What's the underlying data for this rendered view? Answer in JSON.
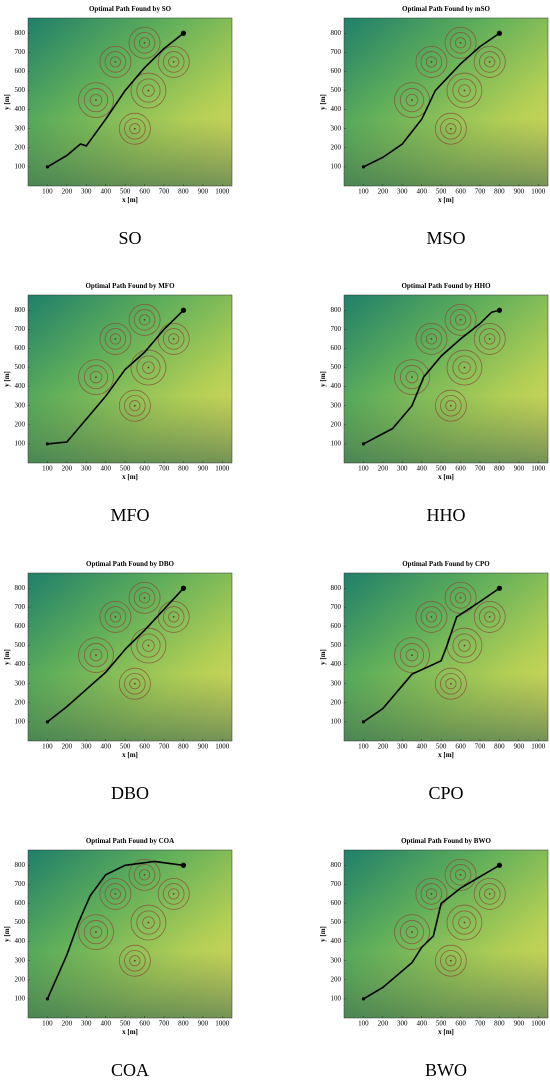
{
  "chart_data": [
    {
      "type": "line",
      "title": "Optimal Path Found by SO",
      "caption": "SO",
      "xlabel": "x [m]",
      "ylabel": "y [m]",
      "xlim": [
        0,
        1050
      ],
      "ylim": [
        0,
        880
      ],
      "xticks": [
        100,
        200,
        300,
        400,
        500,
        600,
        700,
        800,
        900,
        1000
      ],
      "yticks": [
        100,
        200,
        300,
        400,
        500,
        600,
        700,
        800
      ],
      "threats": [
        {
          "x": 600,
          "y": 750,
          "r": 80
        },
        {
          "x": 450,
          "y": 650,
          "r": 80
        },
        {
          "x": 750,
          "y": 650,
          "r": 80
        },
        {
          "x": 350,
          "y": 450,
          "r": 90
        },
        {
          "x": 620,
          "y": 500,
          "r": 90
        },
        {
          "x": 550,
          "y": 300,
          "r": 80
        }
      ],
      "path": {
        "x": [
          100,
          200,
          270,
          300,
          400,
          500,
          600,
          700,
          800
        ],
        "y": [
          100,
          160,
          220,
          210,
          350,
          500,
          620,
          720,
          800
        ]
      }
    },
    {
      "type": "line",
      "title": "Optimal Path Found by mSO",
      "caption": "MSO",
      "xlabel": "x [m]",
      "ylabel": "y [m]",
      "xlim": [
        0,
        1050
      ],
      "ylim": [
        0,
        880
      ],
      "xticks": [
        100,
        200,
        300,
        400,
        500,
        600,
        700,
        800,
        900,
        1000
      ],
      "yticks": [
        100,
        200,
        300,
        400,
        500,
        600,
        700,
        800
      ],
      "threats": [
        {
          "x": 600,
          "y": 750,
          "r": 80
        },
        {
          "x": 450,
          "y": 650,
          "r": 80
        },
        {
          "x": 750,
          "y": 650,
          "r": 80
        },
        {
          "x": 350,
          "y": 450,
          "r": 90
        },
        {
          "x": 620,
          "y": 500,
          "r": 90
        },
        {
          "x": 550,
          "y": 300,
          "r": 80
        }
      ],
      "path": {
        "x": [
          100,
          200,
          300,
          400,
          470,
          600,
          700,
          800
        ],
        "y": [
          100,
          150,
          220,
          350,
          500,
          640,
          730,
          800
        ]
      }
    },
    {
      "type": "line",
      "title": "Optimal Path Found by MFO",
      "caption": "MFO",
      "xlabel": "x [m]",
      "ylabel": "y [m]",
      "xlim": [
        0,
        1050
      ],
      "ylim": [
        0,
        880
      ],
      "xticks": [
        100,
        200,
        300,
        400,
        500,
        600,
        700,
        800,
        900,
        1000
      ],
      "yticks": [
        100,
        200,
        300,
        400,
        500,
        600,
        700,
        800
      ],
      "threats": [
        {
          "x": 600,
          "y": 750,
          "r": 80
        },
        {
          "x": 450,
          "y": 650,
          "r": 80
        },
        {
          "x": 750,
          "y": 650,
          "r": 80
        },
        {
          "x": 350,
          "y": 450,
          "r": 90
        },
        {
          "x": 620,
          "y": 500,
          "r": 90
        },
        {
          "x": 550,
          "y": 300,
          "r": 80
        }
      ],
      "path": {
        "x": [
          100,
          200,
          300,
          400,
          500,
          600,
          700,
          800
        ],
        "y": [
          100,
          110,
          230,
          350,
          490,
          580,
          700,
          800
        ]
      }
    },
    {
      "type": "line",
      "title": "Optimal Path Found by HHO",
      "caption": "HHO",
      "xlabel": "x [m]",
      "ylabel": "y [m]",
      "xlim": [
        0,
        1050
      ],
      "ylim": [
        0,
        880
      ],
      "xticks": [
        100,
        200,
        300,
        400,
        500,
        600,
        700,
        800,
        900,
        1000
      ],
      "yticks": [
        100,
        200,
        300,
        400,
        500,
        600,
        700,
        800
      ],
      "threats": [
        {
          "x": 600,
          "y": 750,
          "r": 80
        },
        {
          "x": 450,
          "y": 650,
          "r": 80
        },
        {
          "x": 750,
          "y": 650,
          "r": 80
        },
        {
          "x": 350,
          "y": 450,
          "r": 90
        },
        {
          "x": 620,
          "y": 500,
          "r": 90
        },
        {
          "x": 550,
          "y": 300,
          "r": 80
        }
      ],
      "path": {
        "x": [
          100,
          250,
          350,
          410,
          500,
          600,
          700,
          760,
          800
        ],
        "y": [
          100,
          180,
          300,
          450,
          560,
          650,
          730,
          790,
          800
        ]
      }
    },
    {
      "type": "line",
      "title": "Optimal Path Found by DBO",
      "caption": "DBO",
      "xlabel": "x [m]",
      "ylabel": "y [m]",
      "xlim": [
        0,
        1050
      ],
      "ylim": [
        0,
        880
      ],
      "xticks": [
        100,
        200,
        300,
        400,
        500,
        600,
        700,
        800,
        900,
        1000
      ],
      "yticks": [
        100,
        200,
        300,
        400,
        500,
        600,
        700,
        800
      ],
      "threats": [
        {
          "x": 600,
          "y": 750,
          "r": 80
        },
        {
          "x": 450,
          "y": 650,
          "r": 80
        },
        {
          "x": 750,
          "y": 650,
          "r": 80
        },
        {
          "x": 350,
          "y": 450,
          "r": 90
        },
        {
          "x": 620,
          "y": 500,
          "r": 90
        },
        {
          "x": 550,
          "y": 300,
          "r": 80
        }
      ],
      "path": {
        "x": [
          100,
          200,
          300,
          400,
          500,
          600,
          700,
          800
        ],
        "y": [
          100,
          180,
          270,
          360,
          480,
          580,
          690,
          800
        ]
      }
    },
    {
      "type": "line",
      "title": "Optimal Path Found by CPO",
      "caption": "CPO",
      "xlabel": "x [m]",
      "ylabel": "y [m]",
      "xlim": [
        0,
        1050
      ],
      "ylim": [
        0,
        880
      ],
      "xticks": [
        100,
        200,
        300,
        400,
        500,
        600,
        700,
        800,
        900,
        1000
      ],
      "yticks": [
        100,
        200,
        300,
        400,
        500,
        600,
        700,
        800
      ],
      "threats": [
        {
          "x": 600,
          "y": 750,
          "r": 80
        },
        {
          "x": 450,
          "y": 650,
          "r": 80
        },
        {
          "x": 750,
          "y": 650,
          "r": 80
        },
        {
          "x": 350,
          "y": 450,
          "r": 90
        },
        {
          "x": 620,
          "y": 500,
          "r": 90
        },
        {
          "x": 550,
          "y": 300,
          "r": 80
        }
      ],
      "path": {
        "x": [
          100,
          200,
          350,
          500,
          530,
          580,
          700,
          800
        ],
        "y": [
          100,
          170,
          350,
          420,
          500,
          650,
          730,
          800
        ]
      }
    },
    {
      "type": "line",
      "title": "Optimal Path Found by COA",
      "caption": "COA",
      "xlabel": "x [m]",
      "ylabel": "y [m]",
      "xlim": [
        0,
        1050
      ],
      "ylim": [
        0,
        880
      ],
      "xticks": [
        100,
        200,
        300,
        400,
        500,
        600,
        700,
        800,
        900,
        1000
      ],
      "yticks": [
        100,
        200,
        300,
        400,
        500,
        600,
        700,
        800
      ],
      "threats": [
        {
          "x": 600,
          "y": 750,
          "r": 80
        },
        {
          "x": 450,
          "y": 650,
          "r": 80
        },
        {
          "x": 750,
          "y": 650,
          "r": 80
        },
        {
          "x": 350,
          "y": 450,
          "r": 90
        },
        {
          "x": 620,
          "y": 500,
          "r": 90
        },
        {
          "x": 550,
          "y": 300,
          "r": 80
        }
      ],
      "path": {
        "x": [
          100,
          200,
          260,
          320,
          400,
          500,
          650,
          800
        ],
        "y": [
          100,
          330,
          500,
          640,
          750,
          800,
          820,
          800
        ]
      }
    },
    {
      "type": "line",
      "title": "Optimal Path Found by BWO",
      "caption": "BWO",
      "xlabel": "x [m]",
      "ylabel": "y [m]",
      "xlim": [
        0,
        1050
      ],
      "ylim": [
        0,
        880
      ],
      "xticks": [
        100,
        200,
        300,
        400,
        500,
        600,
        700,
        800,
        900,
        1000
      ],
      "yticks": [
        100,
        200,
        300,
        400,
        500,
        600,
        700,
        800
      ],
      "threats": [
        {
          "x": 600,
          "y": 750,
          "r": 80
        },
        {
          "x": 450,
          "y": 650,
          "r": 80
        },
        {
          "x": 750,
          "y": 650,
          "r": 80
        },
        {
          "x": 350,
          "y": 450,
          "r": 90
        },
        {
          "x": 620,
          "y": 500,
          "r": 90
        },
        {
          "x": 550,
          "y": 300,
          "r": 80
        }
      ],
      "path": {
        "x": [
          100,
          200,
          350,
          400,
          460,
          500,
          600,
          700,
          800
        ],
        "y": [
          100,
          160,
          290,
          370,
          430,
          600,
          680,
          740,
          800
        ]
      }
    }
  ]
}
